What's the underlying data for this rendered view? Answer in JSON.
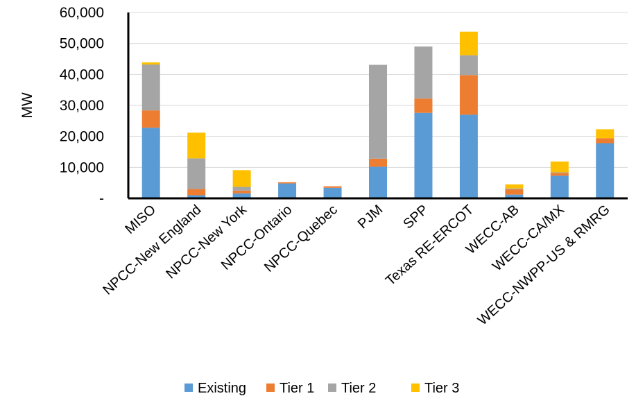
{
  "chart_data": {
    "type": "bar",
    "stacked": true,
    "title": "",
    "xlabel": "",
    "ylabel": "MW",
    "ylim": [
      0,
      60000
    ],
    "yticks": [
      0,
      10000,
      20000,
      30000,
      40000,
      50000,
      60000
    ],
    "ytick_labels": [
      "-",
      "10,000",
      "20,000",
      "30,000",
      "40,000",
      "50,000",
      "60,000"
    ],
    "grid": true,
    "legend_position": "bottom",
    "categories": [
      "MISO",
      "NPCC-New England",
      "NPCC-New York",
      "NPCC-Ontario",
      "NPCC-Quebec",
      "PJM",
      "SPP",
      "Texas RE-ERCOT",
      "WECC-AB",
      "WECC-CA/MX",
      "WECC-NWPP-US & RMRG"
    ],
    "series": [
      {
        "name": "Existing",
        "color": "#5B9BD5",
        "values": [
          22800,
          1000,
          1600,
          4800,
          3400,
          10200,
          27600,
          27000,
          1200,
          7300,
          17800
        ]
      },
      {
        "name": "Tier 1",
        "color": "#ED7D31",
        "values": [
          5600,
          2000,
          900,
          400,
          500,
          2600,
          4600,
          12800,
          1700,
          900,
          1600
        ]
      },
      {
        "name": "Tier 2",
        "color": "#A5A5A5",
        "values": [
          14800,
          9900,
          1200,
          0,
          0,
          30300,
          16800,
          6400,
          300,
          200,
          0
        ]
      },
      {
        "name": "Tier 3",
        "color": "#FFC000",
        "values": [
          700,
          8300,
          5400,
          0,
          0,
          0,
          0,
          7600,
          1300,
          3500,
          2900
        ]
      }
    ]
  }
}
